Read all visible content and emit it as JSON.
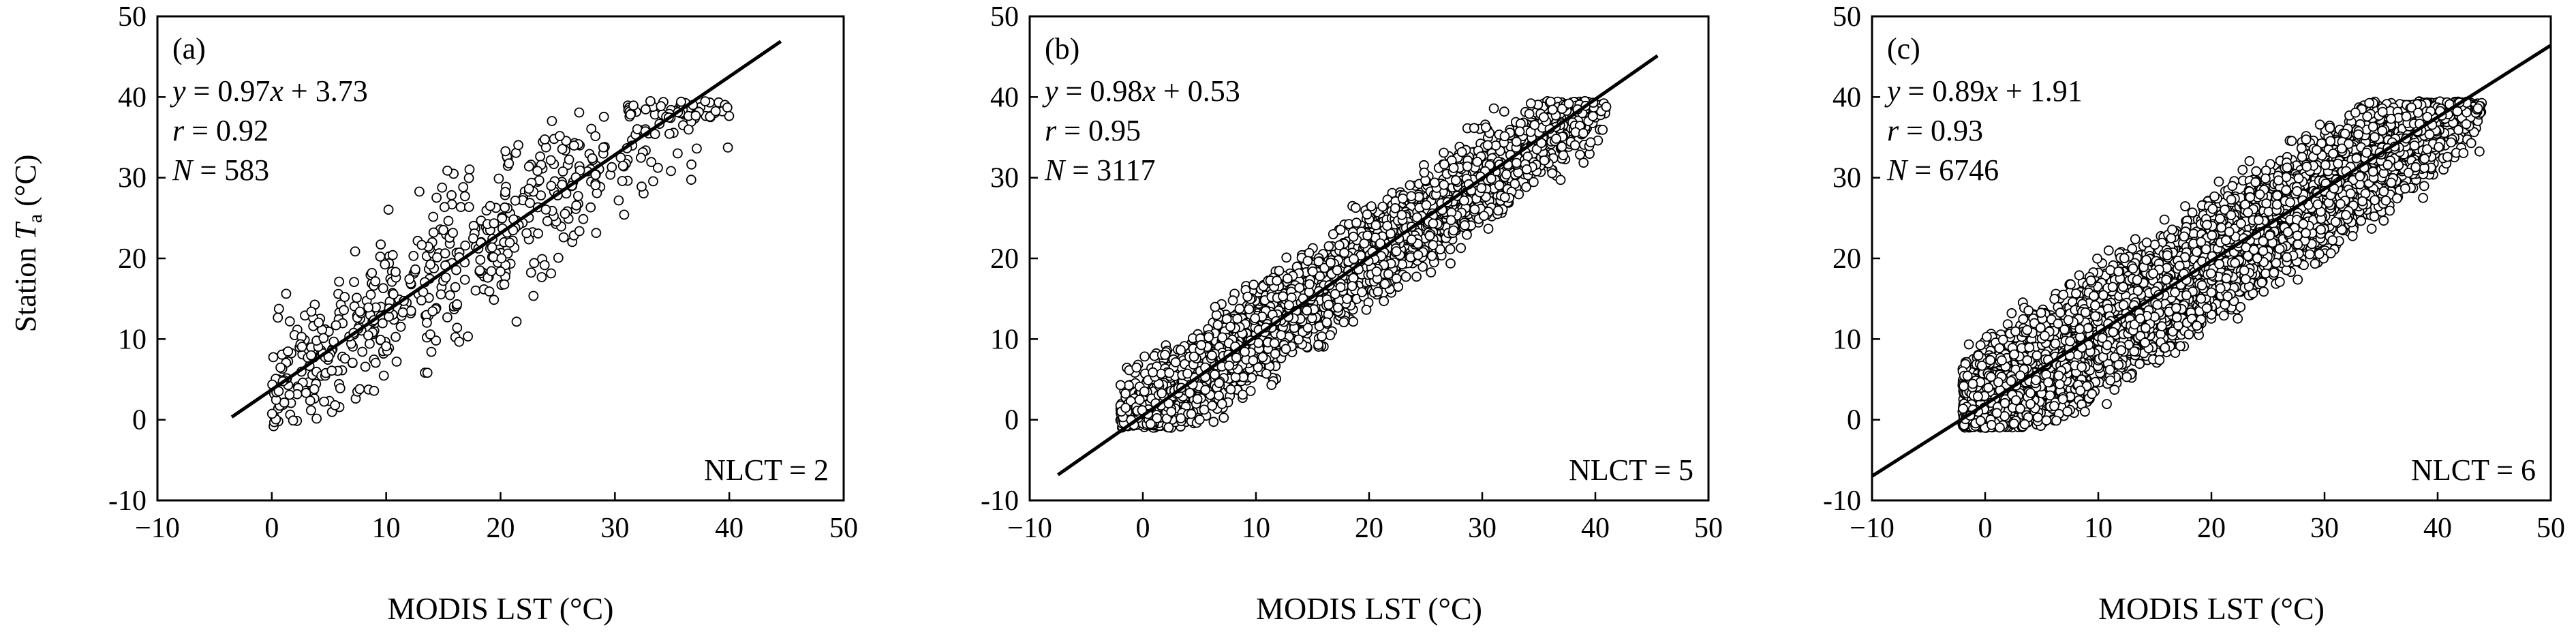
{
  "figure": {
    "ylabel_main": "Station ",
    "ylabel_var": "T",
    "ylabel_sub": "a",
    "ylabel_unit": " (°C)"
  },
  "chart_data": [
    {
      "type": "scatter",
      "panel_label": "(a)",
      "xlabel": "MODIS LST (°C)",
      "ylabel": "Station Ta (°C)",
      "xlim": [
        -10,
        50
      ],
      "ylim": [
        -10,
        50
      ],
      "xticks": [
        "−10",
        "0",
        "10",
        "20",
        "30",
        "40",
        "50"
      ],
      "yticks": [
        "-10",
        "0",
        "10",
        "20",
        "30",
        "40",
        "50"
      ],
      "grid": false,
      "fit": {
        "slope": 0.97,
        "intercept": 3.73,
        "x_range": [
          -3.5,
          44.5
        ]
      },
      "stats": {
        "eq_lhs": "y",
        "eq_var": "x",
        "eq_rest": " = 0.97",
        "eq_tail": " + 3.73",
        "r_var": "r",
        "r_rest": " = 0.92",
        "n_var": "N",
        "n_rest": " = 583"
      },
      "class_label": "NLCT = 2",
      "scatter": {
        "n_points": 583,
        "x_range": [
          0,
          40
        ],
        "spread": 4.5,
        "seed": 11
      }
    },
    {
      "type": "scatter",
      "panel_label": "(b)",
      "xlabel": "MODIS LST (°C)",
      "ylabel": "Station Ta (°C)",
      "xlim": [
        -10,
        50
      ],
      "ylim": [
        -10,
        50
      ],
      "xticks": [
        "−10",
        "0",
        "10",
        "20",
        "30",
        "40",
        "50"
      ],
      "yticks": [
        "-10",
        "0",
        "10",
        "20",
        "30",
        "40",
        "50"
      ],
      "grid": false,
      "fit": {
        "slope": 0.98,
        "intercept": 0.53,
        "x_range": [
          -7.5,
          45.5
        ]
      },
      "stats": {
        "eq_lhs": "y",
        "eq_var": "x",
        "eq_rest": " = 0.98",
        "eq_tail": " + 0.53",
        "r_var": "r",
        "r_rest": " = 0.95",
        "n_var": "N",
        "n_rest": " = 3117"
      },
      "class_label": "NLCT = 5",
      "scatter": {
        "n_points": 3117,
        "x_range": [
          -2,
          41
        ],
        "spread": 2.8,
        "seed": 23
      }
    },
    {
      "type": "scatter",
      "panel_label": "(c)",
      "xlabel": "MODIS LST (°C)",
      "ylabel": "Station Ta (°C)",
      "xlim": [
        -10,
        50
      ],
      "ylim": [
        -10,
        50
      ],
      "xticks": [
        "−10",
        "0",
        "10",
        "20",
        "30",
        "40",
        "50"
      ],
      "yticks": [
        "-10",
        "0",
        "10",
        "20",
        "30",
        "40",
        "50"
      ],
      "grid": false,
      "fit": {
        "slope": 0.89,
        "intercept": 1.91,
        "x_range": [
          -10,
          50
        ]
      },
      "stats": {
        "eq_lhs": "y",
        "eq_var": "x",
        "eq_rest": " = 0.89",
        "eq_tail": " + 1.91",
        "r_var": "r",
        "r_rest": " = 0.93",
        "n_var": "N",
        "n_rest": " = 6746"
      },
      "class_label": "NLCT = 6",
      "scatter": {
        "n_points": 6746,
        "x_range": [
          -2,
          44
        ],
        "spread": 3.4,
        "seed": 37
      }
    }
  ]
}
